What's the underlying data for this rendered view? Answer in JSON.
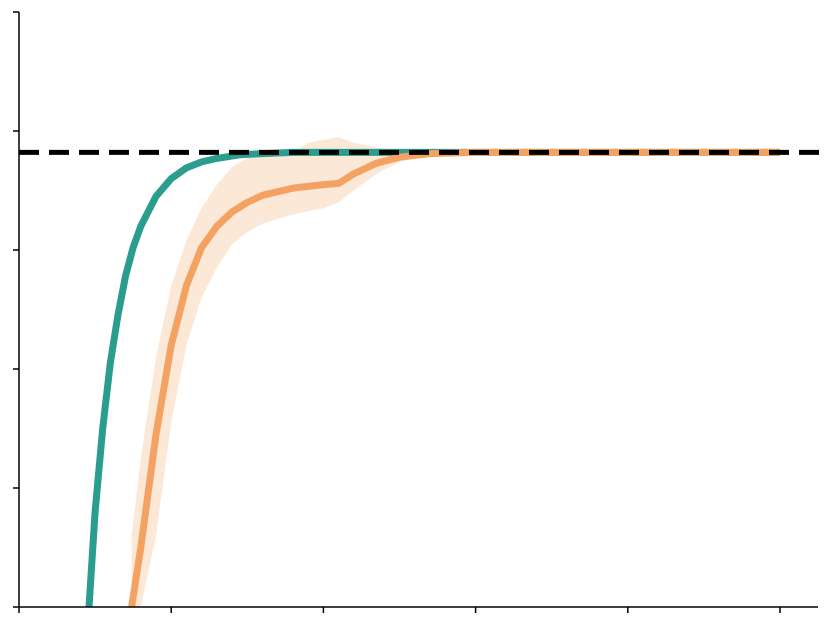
{
  "chart_data": {
    "type": "line",
    "title": "",
    "xlabel": "",
    "ylabel": "",
    "xlim": [
      0,
      5.3
    ],
    "ylim": [
      0,
      5
    ],
    "x_ticks": [
      0,
      1,
      2,
      3,
      4,
      5
    ],
    "y_ticks": [
      0,
      1,
      2,
      3,
      4,
      5
    ],
    "tick_labels_visible": false,
    "grid": false,
    "legend": "none",
    "reference_line": {
      "y": 3.82,
      "style": "dashed",
      "color": "#000000"
    },
    "series": [
      {
        "color": "#2a9d8f",
        "points": [
          [
            0.46,
            0.0
          ],
          [
            0.5,
            0.8
          ],
          [
            0.55,
            1.5
          ],
          [
            0.6,
            2.05
          ],
          [
            0.65,
            2.45
          ],
          [
            0.7,
            2.78
          ],
          [
            0.75,
            3.02
          ],
          [
            0.8,
            3.2
          ],
          [
            0.9,
            3.45
          ],
          [
            1.0,
            3.6
          ],
          [
            1.1,
            3.69
          ],
          [
            1.2,
            3.74
          ],
          [
            1.3,
            3.77
          ],
          [
            1.45,
            3.8
          ],
          [
            1.6,
            3.81
          ],
          [
            1.8,
            3.82
          ],
          [
            2.5,
            3.82
          ],
          [
            3.5,
            3.82
          ],
          [
            5.0,
            3.82
          ]
        ]
      },
      {
        "color": "#f4a261",
        "points": [
          [
            0.74,
            0.0
          ],
          [
            0.8,
            0.5
          ],
          [
            0.9,
            1.45
          ],
          [
            1.0,
            2.2
          ],
          [
            1.1,
            2.7
          ],
          [
            1.2,
            3.02
          ],
          [
            1.3,
            3.2
          ],
          [
            1.4,
            3.32
          ],
          [
            1.5,
            3.4
          ],
          [
            1.6,
            3.46
          ],
          [
            1.8,
            3.52
          ],
          [
            2.0,
            3.55
          ],
          [
            2.1,
            3.56
          ],
          [
            2.2,
            3.64
          ],
          [
            2.35,
            3.73
          ],
          [
            2.5,
            3.78
          ],
          [
            2.7,
            3.81
          ],
          [
            3.0,
            3.82
          ],
          [
            4.0,
            3.82
          ],
          [
            5.0,
            3.82
          ]
        ],
        "band_upper": [
          [
            0.74,
            0.6
          ],
          [
            0.8,
            1.25
          ],
          [
            0.9,
            2.1
          ],
          [
            1.0,
            2.7
          ],
          [
            1.1,
            3.08
          ],
          [
            1.2,
            3.35
          ],
          [
            1.3,
            3.55
          ],
          [
            1.4,
            3.7
          ],
          [
            1.5,
            3.77
          ],
          [
            1.6,
            3.8
          ],
          [
            1.8,
            3.82
          ],
          [
            1.9,
            3.9
          ],
          [
            2.1,
            3.95
          ],
          [
            2.2,
            3.9
          ],
          [
            2.4,
            3.85
          ],
          [
            2.6,
            3.83
          ],
          [
            3.0,
            3.82
          ],
          [
            5.0,
            3.82
          ]
        ],
        "band_lower": [
          [
            0.74,
            0.0
          ],
          [
            0.8,
            0.0
          ],
          [
            0.9,
            0.6
          ],
          [
            1.0,
            1.55
          ],
          [
            1.1,
            2.2
          ],
          [
            1.2,
            2.6
          ],
          [
            1.3,
            2.85
          ],
          [
            1.4,
            3.05
          ],
          [
            1.5,
            3.15
          ],
          [
            1.6,
            3.22
          ],
          [
            1.8,
            3.3
          ],
          [
            2.0,
            3.35
          ],
          [
            2.1,
            3.4
          ],
          [
            2.2,
            3.5
          ],
          [
            2.35,
            3.64
          ],
          [
            2.5,
            3.74
          ],
          [
            2.7,
            3.8
          ],
          [
            3.0,
            3.82
          ],
          [
            5.0,
            3.82
          ]
        ]
      }
    ]
  }
}
